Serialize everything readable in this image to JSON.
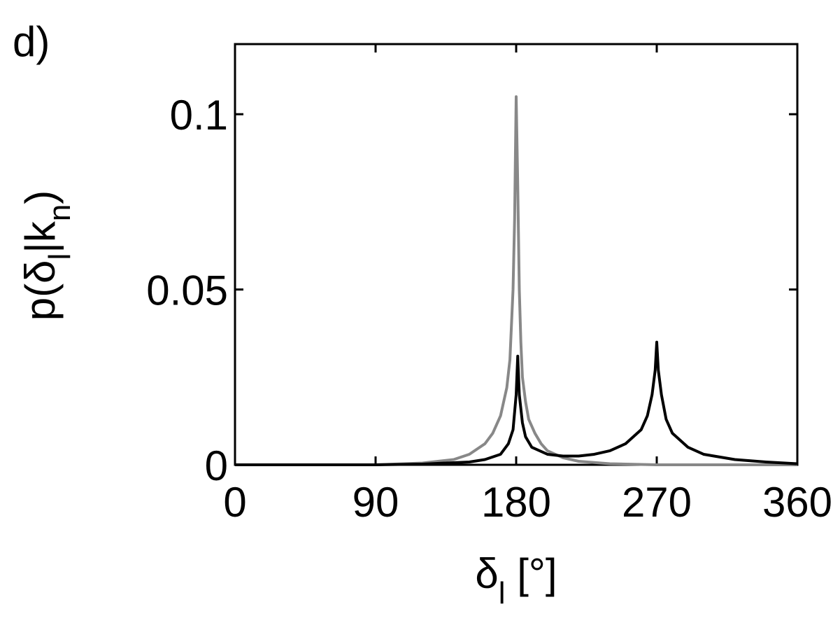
{
  "chart_data": {
    "type": "line",
    "panel_label": "d)",
    "xlabel": [
      "δ",
      "l",
      " [°]"
    ],
    "ylabel": [
      "p(δ",
      "l",
      "|k",
      "n",
      ")"
    ],
    "xlim": [
      0,
      360
    ],
    "xticks": [
      0,
      90,
      180,
      270,
      360
    ],
    "ylim": [
      0,
      0.12
    ],
    "yticks": [
      0,
      0.05,
      0.1
    ],
    "grid": false,
    "series": [
      {
        "color": "#888888",
        "x": [
          0,
          30,
          60,
          90,
          120,
          140,
          150,
          160,
          165,
          170,
          174,
          176,
          178,
          179,
          180,
          181,
          182,
          183,
          184,
          186,
          188,
          192,
          196,
          200,
          210,
          220,
          240,
          270,
          300,
          360
        ],
        "values": [
          0,
          0,
          0,
          0,
          0.0005,
          0.0015,
          0.003,
          0.006,
          0.009,
          0.014,
          0.022,
          0.03,
          0.05,
          0.07,
          0.105,
          0.08,
          0.05,
          0.035,
          0.025,
          0.018,
          0.013,
          0.009,
          0.006,
          0.004,
          0.002,
          0.001,
          0.0003,
          0,
          0,
          0
        ]
      },
      {
        "color": "#000000",
        "x": [
          0,
          90,
          120,
          150,
          160,
          170,
          175,
          178,
          180,
          181,
          182,
          184,
          186,
          190,
          195,
          200,
          210,
          220,
          230,
          240,
          250,
          260,
          264,
          267,
          269,
          270,
          271,
          273,
          276,
          280,
          290,
          300,
          320,
          340,
          360
        ],
        "values": [
          0,
          0,
          0.0002,
          0.0008,
          0.0015,
          0.003,
          0.006,
          0.01,
          0.02,
          0.031,
          0.02,
          0.012,
          0.008,
          0.005,
          0.004,
          0.003,
          0.0025,
          0.0025,
          0.003,
          0.004,
          0.006,
          0.01,
          0.014,
          0.02,
          0.027,
          0.035,
          0.027,
          0.02,
          0.013,
          0.009,
          0.005,
          0.003,
          0.0015,
          0.0008,
          0.0003
        ]
      }
    ]
  }
}
